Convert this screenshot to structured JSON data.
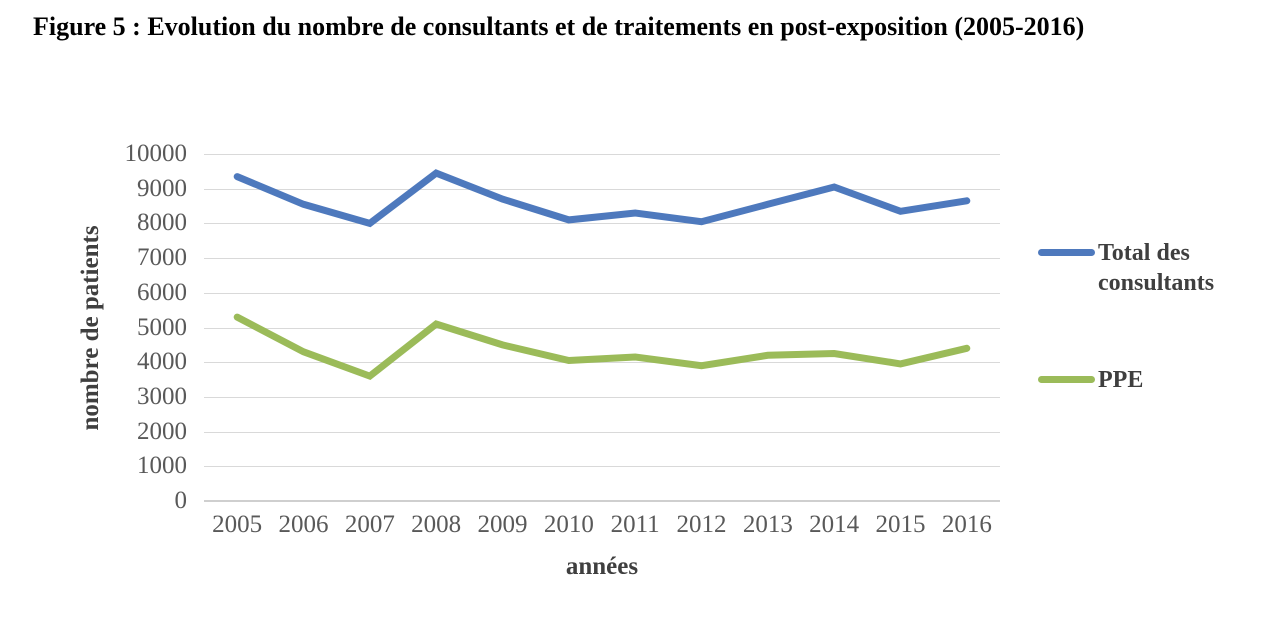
{
  "figure": {
    "title": "Figure 5 : Evolution du nombre de consultants et de traitements en post-exposition (2005-2016)"
  },
  "chart_data": {
    "type": "line",
    "categories": [
      "2005",
      "2006",
      "2007",
      "2008",
      "2009",
      "2010",
      "2011",
      "2012",
      "2013",
      "2014",
      "2015",
      "2016"
    ],
    "series": [
      {
        "name": "Total des consultants",
        "color": "#4E79BD",
        "values": [
          9350,
          8550,
          8000,
          9450,
          8700,
          8100,
          8300,
          8050,
          8550,
          9050,
          8350,
          8650
        ]
      },
      {
        "name": "PPE",
        "color": "#9BBB59",
        "values": [
          5300,
          4300,
          3600,
          5100,
          4500,
          4050,
          4150,
          3900,
          4200,
          4250,
          3950,
          4400
        ]
      }
    ],
    "xlabel": "années",
    "ylabel": "nombre de patients",
    "ylim": [
      0,
      10000
    ],
    "ytick_step": 1000,
    "grid": "horizontal",
    "legend_position": "right"
  },
  "colors": {
    "gridline": "#D9D9D9",
    "axis_line": "#CFCFCF",
    "tick_label": "#595959",
    "axis_title": "#3F3F3F",
    "title_text": "#000000",
    "background": "#FFFFFF"
  }
}
